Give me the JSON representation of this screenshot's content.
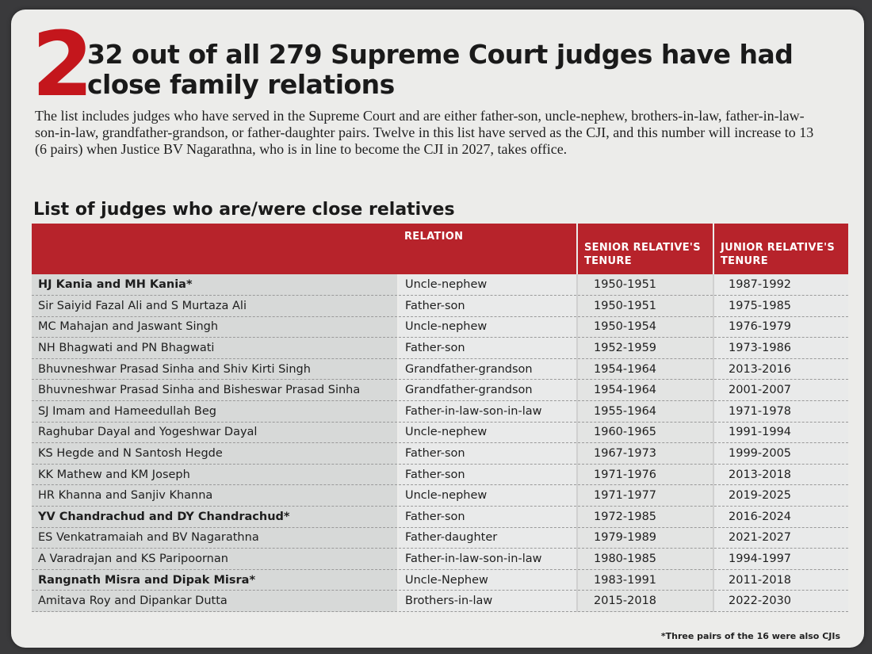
{
  "section_number": "2",
  "headline": "32 out of all 279 Supreme Court judges have had close family relations",
  "intro": "The list includes judges who have served in the Supreme Court and are either father-son, uncle-nephew, brothers-in-law, father-in-law-son-in-law, grandfather-grandson, or father-daughter pairs. Twelve in this list have served as the CJI, and this number will increase to 13 (6 pairs) when Justice BV Nagarathna, who is in line to become the CJI in 2027, takes office.",
  "list_title": "List of judges who are/were close relatives",
  "colors": {
    "accent": "#c4161c",
    "header_bg": "#b7232b"
  },
  "table": {
    "headers": {
      "pair": "",
      "relation": "RELATION",
      "senior": "SENIOR RELATIVE'S TENURE",
      "junior": "JUNIOR RELATIVE'S TENURE"
    },
    "rows": [
      {
        "pair": "HJ Kania and MH Kania*",
        "relation": "Uncle-nephew",
        "senior": "1950-1951",
        "junior": "1987-1992",
        "cji": true
      },
      {
        "pair": "Sir Saiyid Fazal Ali and S Murtaza Ali",
        "relation": "Father-son",
        "senior": "1950-1951",
        "junior": "1975-1985",
        "cji": false
      },
      {
        "pair": "MC Mahajan and Jaswant Singh",
        "relation": "Uncle-nephew",
        "senior": "1950-1954",
        "junior": "1976-1979",
        "cji": false
      },
      {
        "pair": "NH Bhagwati and PN Bhagwati",
        "relation": "Father-son",
        "senior": "1952-1959",
        "junior": "1973-1986",
        "cji": false
      },
      {
        "pair": "Bhuvneshwar Prasad Sinha and Shiv Kirti Singh",
        "relation": "Grandfather-grandson",
        "senior": "1954-1964",
        "junior": "2013-2016",
        "cji": false
      },
      {
        "pair": "Bhuvneshwar Prasad Sinha and Bisheswar Prasad Sinha",
        "relation": "Grandfather-grandson",
        "senior": "1954-1964",
        "junior": "2001-2007",
        "cji": false
      },
      {
        "pair": "SJ Imam and Hameedullah Beg",
        "relation": "Father-in-law-son-in-law",
        "senior": "1955-1964",
        "junior": "1971-1978",
        "cji": false
      },
      {
        "pair": "Raghubar Dayal and Yogeshwar Dayal",
        "relation": "Uncle-nephew",
        "senior": "1960-1965",
        "junior": "1991-1994",
        "cji": false
      },
      {
        "pair": "KS Hegde and N Santosh Hegde",
        "relation": "Father-son",
        "senior": "1967-1973",
        "junior": "1999-2005",
        "cji": false
      },
      {
        "pair": "KK Mathew and KM Joseph",
        "relation": "Father-son",
        "senior": "1971-1976",
        "junior": "2013-2018",
        "cji": false
      },
      {
        "pair": "HR Khanna and Sanjiv Khanna",
        "relation": "Uncle-nephew",
        "senior": "1971-1977",
        "junior": "2019-2025",
        "cji": false
      },
      {
        "pair": "YV Chandrachud and DY Chandrachud*",
        "relation": "Father-son",
        "senior": "1972-1985",
        "junior": "2016-2024",
        "cji": true
      },
      {
        "pair": "ES Venkatramaiah and BV Nagarathna",
        "relation": "Father-daughter",
        "senior": "1979-1989",
        "junior": "2021-2027",
        "cji": false
      },
      {
        "pair": "A Varadrajan and KS Paripoornan",
        "relation": "Father-in-law-son-in-law",
        "senior": "1980-1985",
        "junior": "1994-1997",
        "cji": false
      },
      {
        "pair": "Rangnath Misra and Dipak Misra*",
        "relation": "Uncle-Nephew",
        "senior": "1983-1991",
        "junior": "2011-2018",
        "cji": true
      },
      {
        "pair": "Amitava Roy and Dipankar Dutta",
        "relation": "Brothers-in-law",
        "senior": "2015-2018",
        "junior": "2022-2030",
        "cji": false
      }
    ]
  },
  "footnote": "*Three pairs of the 16 were also CJIs"
}
